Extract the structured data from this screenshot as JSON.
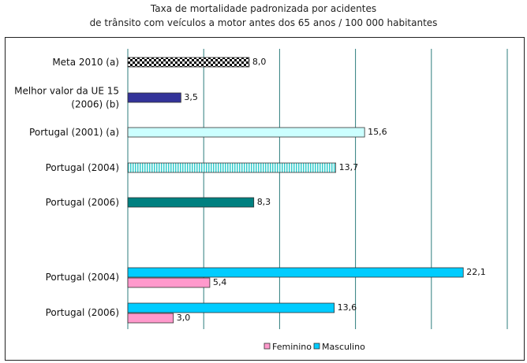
{
  "chart_data": {
    "type": "bar",
    "orientation": "horizontal",
    "title": "Taxa de mortalidade padronizada por acidentes",
    "subtitle": "de trânsito com veículos a motor antes dos 65 anos / 100 000 habitantes",
    "xlim": [
      0,
      25
    ],
    "grid": true,
    "legend": {
      "position": "bottom",
      "items": [
        {
          "name": "Feminino",
          "color": "#ff99cc"
        },
        {
          "name": "Masculino",
          "color": "#00ccff"
        }
      ]
    },
    "categories": [
      {
        "label": [
          "Meta 2010 (a)"
        ],
        "bars": [
          {
            "value": 8.0,
            "text": "8,0",
            "fill": "checker",
            "color": "#000000"
          }
        ]
      },
      {
        "label": [
          "Melhor valor da UE 15",
          "(2006) (b)"
        ],
        "bars": [
          {
            "value": 3.5,
            "text": "3,5",
            "fill": "solid",
            "color": "#333399"
          }
        ]
      },
      {
        "label": [
          "Portugal (2001) (a)"
        ],
        "bars": [
          {
            "value": 15.6,
            "text": "15,6",
            "fill": "solid",
            "color": "#ccffff"
          }
        ]
      },
      {
        "label": [
          "Portugal (2004)"
        ],
        "bars": [
          {
            "value": 13.7,
            "text": "13,7",
            "fill": "stripes",
            "color": "#33cccc"
          }
        ]
      },
      {
        "label": [
          "Portugal (2006)"
        ],
        "bars": [
          {
            "value": 8.3,
            "text": "8,3",
            "fill": "solid",
            "color": "#008080"
          }
        ]
      },
      {
        "label": [
          "Portugal (2004)"
        ],
        "bars": [
          {
            "series": "Masculino",
            "value": 22.1,
            "text": "22,1",
            "fill": "solid",
            "color": "#00ccff"
          },
          {
            "series": "Feminino",
            "value": 5.4,
            "text": "5,4",
            "fill": "solid",
            "color": "#ff99cc"
          }
        ]
      },
      {
        "label": [
          "Portugal (2006)"
        ],
        "bars": [
          {
            "series": "Masculino",
            "value": 13.6,
            "text": "13,6",
            "fill": "solid",
            "color": "#00ccff"
          },
          {
            "series": "Feminino",
            "value": 3.0,
            "text": "3,0",
            "fill": "solid",
            "color": "#ff99cc"
          }
        ]
      }
    ]
  }
}
